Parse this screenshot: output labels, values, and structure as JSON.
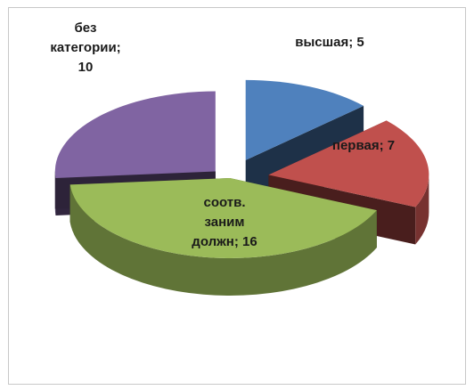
{
  "chart_data": {
    "type": "pie",
    "title": "",
    "categories": [
      "высшая",
      "первая",
      "соотв. заним должн",
      "без категории"
    ],
    "values": [
      5,
      7,
      16,
      10
    ],
    "colors": [
      "#4f81bd",
      "#c0504d",
      "#9bbb59",
      "#8064a2"
    ],
    "style": "3d-exploded",
    "legend": "none",
    "data_labels": [
      [
        "высшая; 5"
      ],
      [
        "первая; 7"
      ],
      [
        "соотв.",
        "заним",
        "должн; 16"
      ],
      [
        "без",
        "категории;",
        "10"
      ]
    ]
  }
}
